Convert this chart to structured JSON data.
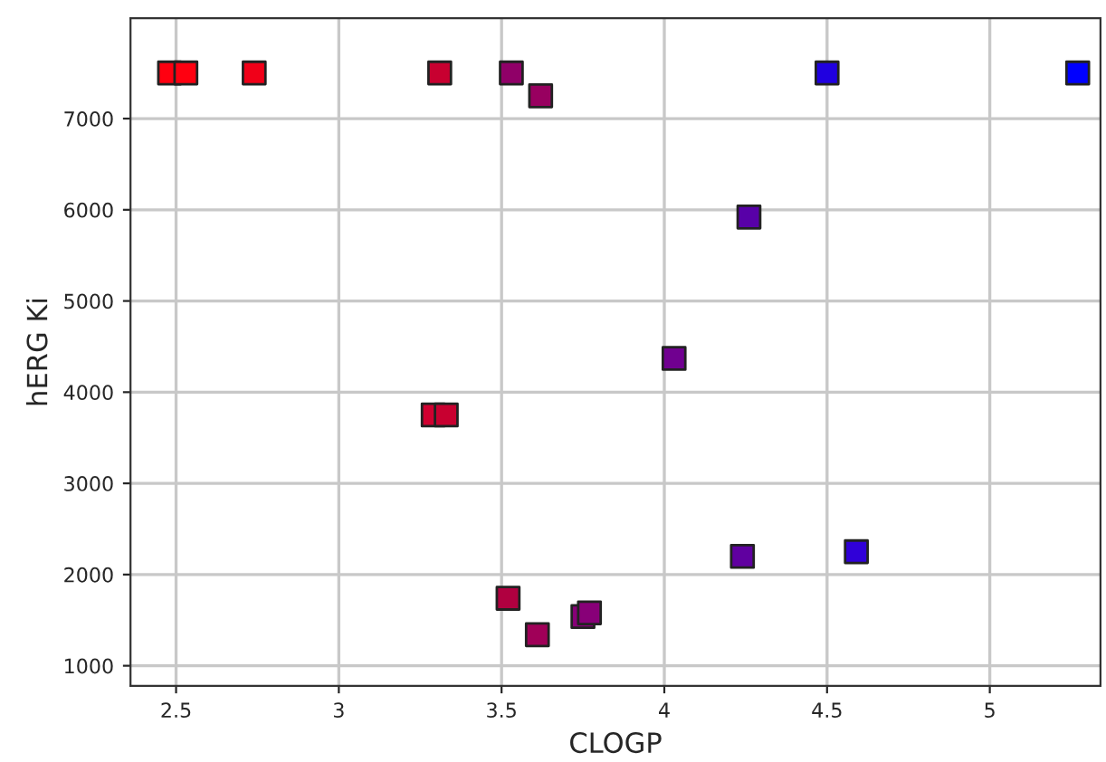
{
  "chart_data": {
    "type": "scatter",
    "xlabel": "CLOGP",
    "ylabel": "hERG Ki",
    "x": [
      2.48,
      2.53,
      2.74,
      3.31,
      3.53,
      3.62,
      3.29,
      3.33,
      3.52,
      3.61,
      3.75,
      3.77,
      4.03,
      4.26,
      4.24,
      4.59,
      4.5,
      5.27
    ],
    "values": [
      7500,
      7500,
      7500,
      7500,
      7500,
      7250,
      3750,
      3750,
      1740,
      1340,
      1540,
      1580,
      4370,
      5920,
      2200,
      2250,
      7500,
      7500
    ],
    "colors": [
      "#ff0010",
      "#ff0010",
      "#f00018",
      "#c80030",
      "#900068",
      "#980060",
      "#d00030",
      "#c80030",
      "#b00040",
      "#a00058",
      "#880078",
      "#880078",
      "#700090",
      "#5800a8",
      "#6000a0",
      "#3000d8",
      "#2000e0",
      "#0000ff"
    ],
    "marker": "square",
    "xlim": [
      2.36,
      5.34
    ],
    "ylim": [
      780,
      8100
    ],
    "xticks": [
      2.5,
      3,
      3.5,
      4,
      4.5,
      5
    ],
    "yticks": [
      1000,
      2000,
      3000,
      4000,
      5000,
      6000,
      7000
    ],
    "grid": true
  }
}
